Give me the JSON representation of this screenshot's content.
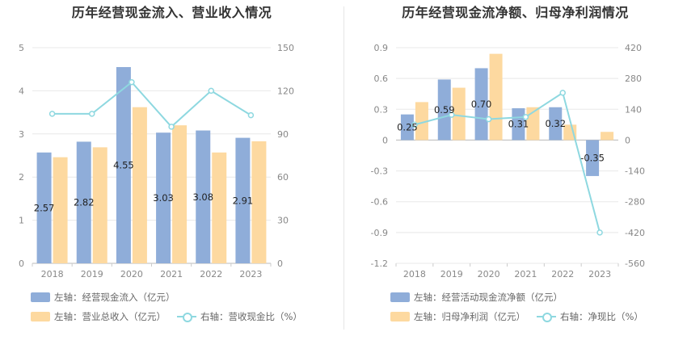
{
  "colors": {
    "primary_bar": "#8fadd9",
    "secondary_bar": "#fdd9a0",
    "line": "#8ed8e0",
    "grid": "#e8e8e8",
    "axis_text": "#888888"
  },
  "chart_data": [
    {
      "type": "bar",
      "title": "历年经营现金流入、营业收入情况",
      "categories": [
        "2018",
        "2019",
        "2020",
        "2021",
        "2022",
        "2023"
      ],
      "left_axis": {
        "ylim": [
          0,
          5
        ],
        "ticks": [
          "0",
          "1",
          "2",
          "3",
          "4",
          "5"
        ]
      },
      "right_axis": {
        "ylim": [
          0,
          150
        ],
        "ticks": [
          "0",
          "30",
          "60",
          "90",
          "120",
          "150"
        ]
      },
      "series": [
        {
          "name": "经营现金流入",
          "axis": "left",
          "kind": "bar",
          "values": [
            2.57,
            2.82,
            4.55,
            3.03,
            3.08,
            2.91
          ],
          "labels": [
            "2.57",
            "2.82",
            "4.55",
            "3.03",
            "3.08",
            "2.91"
          ]
        },
        {
          "name": "营业总收入",
          "axis": "left",
          "kind": "bar",
          "values": [
            2.46,
            2.69,
            3.62,
            3.2,
            2.57,
            2.83
          ]
        },
        {
          "name": "营收现金比",
          "axis": "right",
          "kind": "line",
          "values": [
            104,
            104,
            126,
            95,
            120,
            103
          ]
        }
      ],
      "legend": [
        {
          "prefix": "左轴：",
          "label": "经营现金流入（亿元）",
          "kind": "bar"
        },
        {
          "prefix": "左轴：",
          "label": "营业总收入（亿元）",
          "kind": "bar"
        },
        {
          "prefix": "右轴：",
          "label": "营收现金比（%）",
          "kind": "line"
        }
      ]
    },
    {
      "type": "bar",
      "title": "历年经营现金流净额、归母净利润情况",
      "categories": [
        "2018",
        "2019",
        "2020",
        "2021",
        "2022",
        "2023"
      ],
      "left_axis": {
        "ylim": [
          -1.2,
          0.9
        ],
        "ticks": [
          "-1.2",
          "-0.9",
          "-0.6",
          "-0.3",
          "0",
          "0.3",
          "0.6",
          "0.9"
        ]
      },
      "right_axis": {
        "ylim": [
          -560,
          420
        ],
        "ticks": [
          "-560",
          "-420",
          "-280",
          "-140",
          "0",
          "140",
          "280",
          "420"
        ]
      },
      "series": [
        {
          "name": "经营活动现金流净额",
          "axis": "left",
          "kind": "bar",
          "values": [
            0.25,
            0.59,
            0.7,
            0.31,
            0.32,
            -0.35
          ],
          "labels": [
            "0.25",
            "0.59",
            "0.70",
            "0.31",
            "0.32",
            "-0.35"
          ]
        },
        {
          "name": "归母净利润",
          "axis": "left",
          "kind": "bar",
          "values": [
            0.37,
            0.51,
            0.84,
            0.32,
            0.15,
            0.08
          ]
        },
        {
          "name": "净现比",
          "axis": "right",
          "kind": "line",
          "values": [
            70,
            115,
            95,
            105,
            215,
            -420
          ]
        }
      ],
      "legend": [
        {
          "prefix": "左轴：",
          "label": "经营活动现金流净额（亿元）",
          "kind": "bar"
        },
        {
          "prefix": "左轴：",
          "label": "归母净利润（亿元）",
          "kind": "bar"
        },
        {
          "prefix": "右轴：",
          "label": "净现比（%）",
          "kind": "line"
        }
      ]
    }
  ]
}
